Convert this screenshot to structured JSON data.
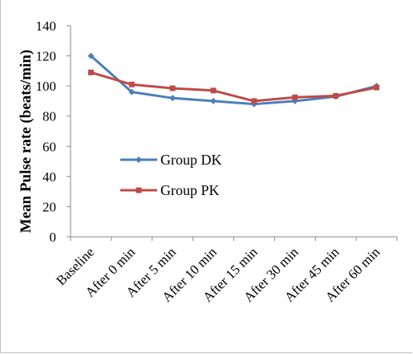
{
  "chart_data": {
    "type": "line",
    "title": "",
    "xlabel": "",
    "ylabel": "Mean Pulse rate (beats/min)",
    "categories": [
      "Baseline",
      "After 0 min",
      "After 5 min",
      "After 10 min",
      "After 15 min",
      "After 30 min",
      "After 45 min",
      "After 60 min"
    ],
    "ylim": [
      0,
      140
    ],
    "yticks": [
      "0",
      "20",
      "40",
      "60",
      "80",
      "100",
      "120",
      "140"
    ],
    "grid": false,
    "legend_position": "center-left",
    "series": [
      {
        "name": "Group DK",
        "color": "#4a7ebb",
        "marker": "diamond",
        "values": [
          120,
          96,
          92,
          90,
          88,
          90,
          93,
          100
        ]
      },
      {
        "name": "Group PK",
        "color": "#be4b48",
        "marker": "square",
        "values": [
          109,
          101,
          98.5,
          97,
          90,
          92.5,
          93.5,
          99
        ]
      }
    ]
  }
}
